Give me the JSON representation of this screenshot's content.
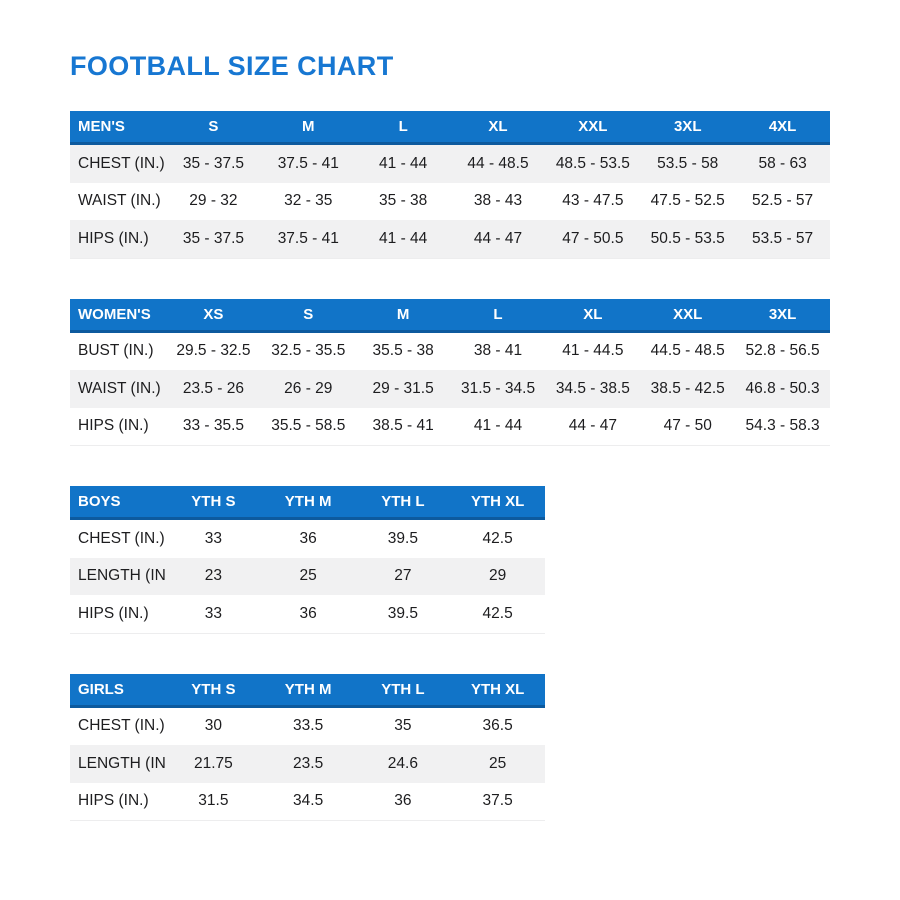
{
  "title": "FOOTBALL SIZE CHART",
  "colors": {
    "accent": "#1174c8",
    "header_line": "#0d5a9e",
    "row_alt": "#f1f1f2",
    "title": "#1777d2",
    "text": "#1d1d1f"
  },
  "tables": [
    {
      "id": "mens",
      "wide": true,
      "header": [
        "MEN'S",
        "S",
        "M",
        "L",
        "XL",
        "XXL",
        "3XL",
        "4XL"
      ],
      "rows": [
        {
          "label": "CHEST (IN.)",
          "shaded": true,
          "values": [
            "35 - 37.5",
            "37.5 - 41",
            "41 - 44",
            "44 - 48.5",
            "48.5 - 53.5",
            "53.5 - 58",
            "58 - 63"
          ]
        },
        {
          "label": "WAIST (IN.)",
          "shaded": false,
          "values": [
            "29 - 32",
            "32 - 35",
            "35 - 38",
            "38 - 43",
            "43 - 47.5",
            "47.5 - 52.5",
            "52.5 - 57"
          ]
        },
        {
          "label": "HIPS (IN.)",
          "shaded": true,
          "values": [
            "35 - 37.5",
            "37.5 - 41",
            "41 - 44",
            "44 - 47",
            "47 - 50.5",
            "50.5 - 53.5",
            "53.5 - 57"
          ]
        }
      ]
    },
    {
      "id": "womens",
      "wide": true,
      "header": [
        "WOMEN'S",
        "XS",
        "S",
        "M",
        "L",
        "XL",
        "XXL",
        "3XL"
      ],
      "rows": [
        {
          "label": "BUST (IN.)",
          "shaded": false,
          "values": [
            "29.5 - 32.5",
            "32.5 - 35.5",
            "35.5 - 38",
            "38 - 41",
            "41 - 44.5",
            "44.5 - 48.5",
            "52.8 - 56.5"
          ]
        },
        {
          "label": "WAIST (IN.)",
          "shaded": true,
          "values": [
            "23.5 - 26",
            "26 - 29",
            "29 - 31.5",
            "31.5 - 34.5",
            "34.5 - 38.5",
            "38.5 - 42.5",
            "46.8 - 50.3"
          ]
        },
        {
          "label": "HIPS (IN.)",
          "shaded": false,
          "values": [
            "33 - 35.5",
            "35.5 - 58.5",
            "38.5 - 41",
            "41 - 44",
            "44 - 47",
            "47 - 50",
            "54.3 - 58.3"
          ]
        }
      ]
    },
    {
      "id": "boys",
      "wide": false,
      "header": [
        "BOYS",
        "YTH S",
        "YTH M",
        "YTH L",
        "YTH XL"
      ],
      "rows": [
        {
          "label": "CHEST (IN.)",
          "shaded": false,
          "values": [
            "33",
            "36",
            "39.5",
            "42.5"
          ]
        },
        {
          "label": "LENGTH (IN.)",
          "shaded": true,
          "values": [
            "23",
            "25",
            "27",
            "29"
          ]
        },
        {
          "label": "HIPS (IN.)",
          "shaded": false,
          "values": [
            "33",
            "36",
            "39.5",
            "42.5"
          ]
        }
      ]
    },
    {
      "id": "girls",
      "wide": false,
      "header": [
        "GIRLS",
        "YTH S",
        "YTH M",
        "YTH L",
        "YTH XL"
      ],
      "rows": [
        {
          "label": "CHEST (IN.)",
          "shaded": false,
          "values": [
            "30",
            "33.5",
            "35",
            "36.5"
          ]
        },
        {
          "label": "LENGTH (IN.)",
          "shaded": true,
          "values": [
            "21.75",
            "23.5",
            "24.6",
            "25"
          ]
        },
        {
          "label": "HIPS (IN.)",
          "shaded": false,
          "values": [
            "31.5",
            "34.5",
            "36",
            "37.5"
          ]
        }
      ]
    }
  ]
}
